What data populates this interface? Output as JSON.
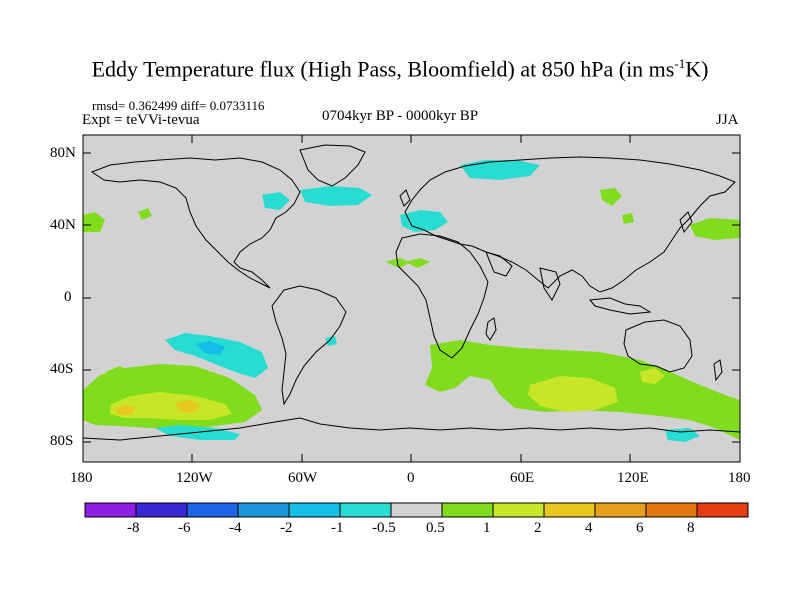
{
  "title_main": "Eddy Temperature flux (High Pass, Bloomfield) at 850 hPa (in ms",
  "title_sup": "-1",
  "title_end": "K)",
  "stats": "rmsd= 0.362499 diff= 0.0733116",
  "expt": "Expt = teVVi-tevua",
  "period": "0704kyr BP - 0000kyr BP",
  "season": "JJA",
  "lat_labels": [
    "80N",
    "40N",
    "0",
    "40S",
    "80S"
  ],
  "lon_labels": [
    "180",
    "120W",
    "60W",
    "0",
    "60E",
    "120E",
    "180"
  ],
  "colorbar": {
    "colors": [
      "#8c1ee6",
      "#3c28d2",
      "#1e64e6",
      "#1e96dc",
      "#14bee6",
      "#28dcd2",
      "#d2d2d2",
      "#82dc1e",
      "#c8e628",
      "#e6c81e",
      "#e6a01e",
      "#e67814",
      "#e63c14"
    ],
    "labels": [
      "-8",
      "-6",
      "-4",
      "-2",
      "-1",
      "-0.5",
      "0.5",
      "1",
      "2",
      "4",
      "6",
      "8"
    ]
  },
  "map_colors": {
    "background": "#d2d2d2",
    "coast": "#000000"
  }
}
